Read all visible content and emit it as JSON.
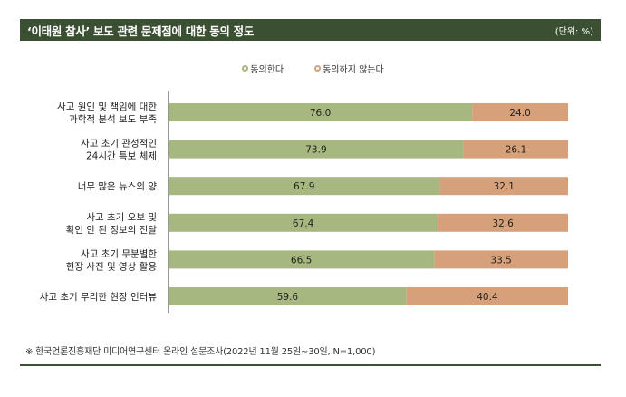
{
  "header": {
    "title": "‘이태원 참사’ 보도 관련 문제점에 대한 동의 정도",
    "unit": "(단위: %)"
  },
  "legend": {
    "agree": "동의한다",
    "disagree": "동의하지 않는다"
  },
  "colors": {
    "header_bg": "#3b4f33",
    "agree": "#a6b77f",
    "disagree": "#d6a17a"
  },
  "chart_data": {
    "type": "bar",
    "orientation": "horizontal",
    "stacked": true,
    "categories": [
      [
        "사고 원인 및 책임에 대한",
        "과학적 분석 보도 부족"
      ],
      [
        "사고 초기 관성적인",
        "24시간 특보 체제"
      ],
      [
        "너무 많은 뉴스의 양"
      ],
      [
        "사고 초기 오보 및",
        "확인 안 된 정보의 전달"
      ],
      [
        "사고 초기 무분별한",
        "현장 사진 및 영상 활용"
      ],
      [
        "사고 초기 무리한 현장 인터뷰"
      ]
    ],
    "series": [
      {
        "name": "동의한다",
        "values": [
          76.0,
          73.9,
          67.9,
          67.4,
          66.5,
          59.6
        ],
        "labels": [
          "76.0",
          "73.9",
          "67.9",
          "67.4",
          "66.5",
          "59.6"
        ]
      },
      {
        "name": "동의하지 않는다",
        "values": [
          24.0,
          26.1,
          32.1,
          32.6,
          33.5,
          40.4
        ],
        "labels": [
          "24.0",
          "26.1",
          "32.1",
          "32.6",
          "33.5",
          "40.4"
        ]
      }
    ],
    "xlim": [
      0,
      100
    ],
    "grid": false,
    "legend_position": "top-center"
  },
  "footnote": "※ 한국언론진흥재단 미디어연구센터 온라인 설문조사(2022년 11월 25일~30일, N=1,000)"
}
